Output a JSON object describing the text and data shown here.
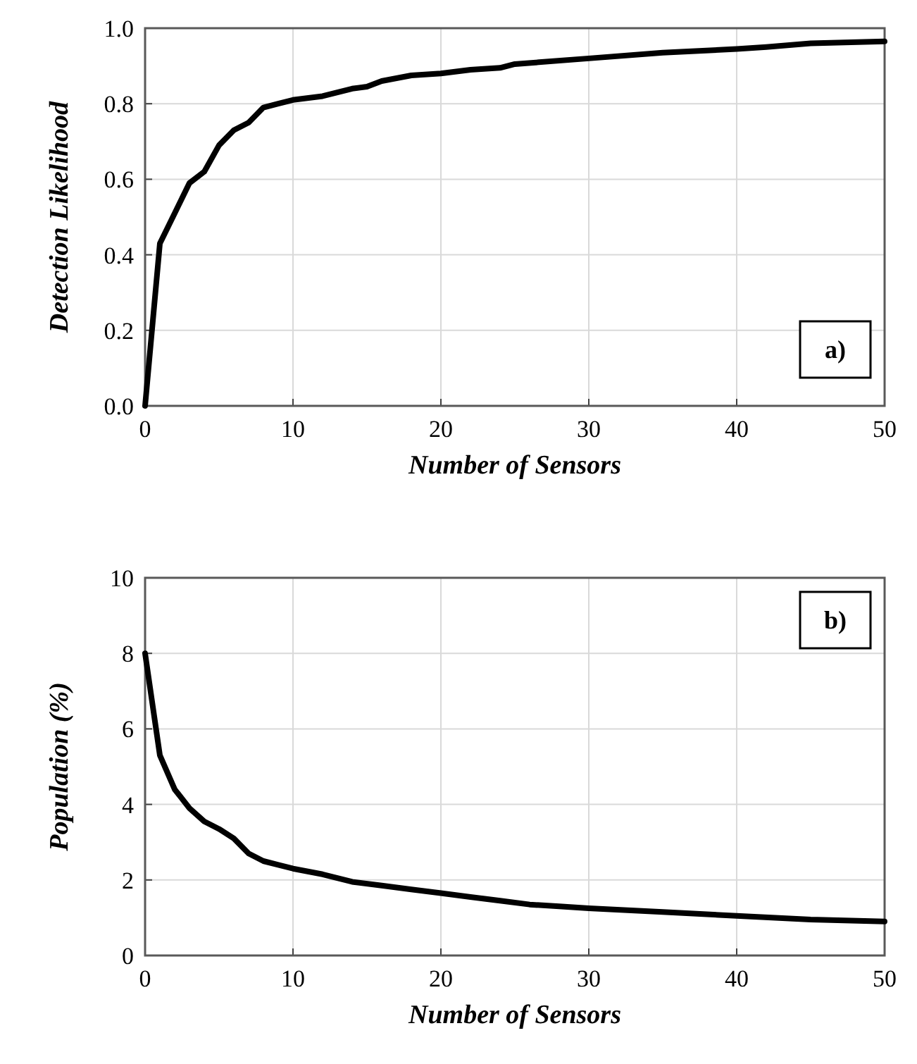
{
  "chart_data": [
    {
      "type": "line",
      "xlabel": "Number of Sensors",
      "ylabel": "Detection Likelihood",
      "annotations": [
        "a)"
      ],
      "x": [
        0,
        1,
        2,
        3,
        4,
        5,
        6,
        7,
        8,
        9,
        10,
        12,
        14,
        15,
        16,
        18,
        20,
        22,
        24,
        25,
        30,
        35,
        40,
        42,
        45,
        50
      ],
      "series": [
        {
          "color": "#000000",
          "values": [
            0,
            0.43,
            0.51,
            0.59,
            0.62,
            0.69,
            0.73,
            0.75,
            0.79,
            0.8,
            0.81,
            0.82,
            0.84,
            0.845,
            0.86,
            0.875,
            0.88,
            0.89,
            0.895,
            0.905,
            0.92,
            0.935,
            0.945,
            0.95,
            0.96,
            0.965
          ]
        }
      ],
      "xlim": [
        0,
        50
      ],
      "xticks": [
        0,
        10,
        20,
        30,
        40,
        50
      ],
      "ylim": [
        0,
        1
      ],
      "yticks": [
        {
          "value": 0,
          "label": "0.0"
        },
        {
          "value": 0.2,
          "label": "0.2"
        },
        {
          "value": 0.4,
          "label": "0.4"
        },
        {
          "value": 0.6,
          "label": "0.6"
        },
        {
          "value": 0.8,
          "label": "0.8"
        },
        {
          "value": 1,
          "label": "1.0"
        }
      ],
      "grid": true
    },
    {
      "type": "line",
      "xlabel": "Number of Sensors",
      "ylabel": "Population (%)",
      "annotations": [
        "b)"
      ],
      "x": [
        0,
        1,
        2,
        3,
        4,
        5,
        6,
        7,
        8,
        9,
        10,
        12,
        14,
        16,
        18,
        20,
        22,
        24,
        26,
        28,
        30,
        35,
        40,
        45,
        50
      ],
      "series": [
        {
          "color": "#000000",
          "values": [
            8,
            5.3,
            4.4,
            3.9,
            3.55,
            3.35,
            3.1,
            2.7,
            2.5,
            2.4,
            2.3,
            2.15,
            1.95,
            1.85,
            1.75,
            1.65,
            1.55,
            1.45,
            1.35,
            1.3,
            1.25,
            1.15,
            1.05,
            0.95,
            0.9
          ]
        }
      ],
      "xlim": [
        0,
        50
      ],
      "xticks": [
        0,
        10,
        20,
        30,
        40,
        50
      ],
      "ylim": [
        0,
        10
      ],
      "yticks": [
        0,
        2,
        4,
        6,
        8,
        10
      ],
      "grid": true
    }
  ]
}
